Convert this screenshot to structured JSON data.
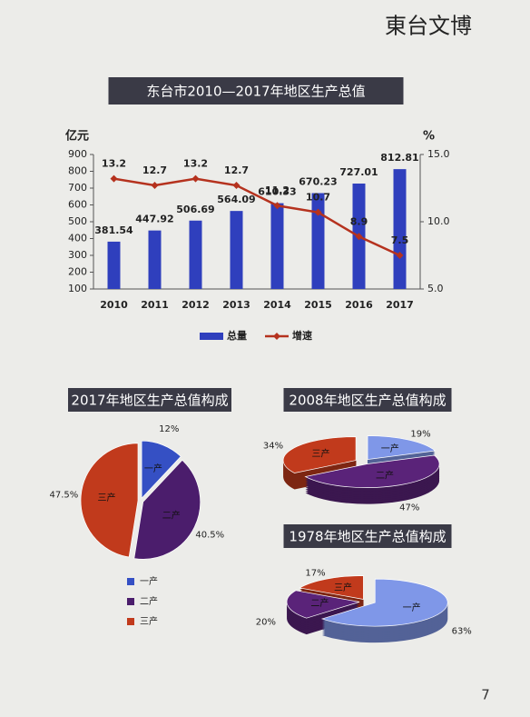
{
  "page": {
    "brand": "東台文博",
    "page_number": "7"
  },
  "chart_data": [
    {
      "type": "bar",
      "title": "东台市2010—2017年地区生产总值",
      "y_label": "亿元",
      "y2_label": "%",
      "categories": [
        "2010",
        "2011",
        "2012",
        "2013",
        "2014",
        "2015",
        "2016",
        "2017"
      ],
      "series": [
        {
          "name": "总量",
          "type": "bar",
          "color": "#2f3fbd",
          "values": [
            381.54,
            447.92,
            506.69,
            564.09,
            610.33,
            670.23,
            727.01,
            812.81
          ]
        },
        {
          "name": "增速",
          "type": "line",
          "axis": "y2",
          "color": "#b5321e",
          "values": [
            13.2,
            12.7,
            13.2,
            12.7,
            11.2,
            10.7,
            8.9,
            7.5
          ]
        }
      ],
      "ylim": [
        100,
        900
      ],
      "yticks": [
        100,
        200,
        300,
        400,
        500,
        600,
        700,
        800,
        900
      ],
      "y2lim": [
        5,
        15
      ],
      "y2ticks": [
        {
          "value": 5,
          "label": "5.0"
        },
        {
          "value": 10,
          "label": "10.0"
        },
        {
          "value": 15,
          "label": "15.0"
        }
      ]
    },
    {
      "type": "pie",
      "title": "2017年地区生产总值构成",
      "three_d": false,
      "legend": true,
      "categories": [
        "一产",
        "二产",
        "三产"
      ],
      "values": [
        12,
        40.5,
        47.5
      ],
      "value_labels": [
        "12%",
        "40.5%",
        "47.5%"
      ],
      "colors": [
        "#3550c4",
        "#4b1d6c",
        "#c13a1c"
      ]
    },
    {
      "type": "pie",
      "title": "2008年地区生产总值构成",
      "three_d": true,
      "legend": false,
      "categories": [
        "一产",
        "二产",
        "三产"
      ],
      "values": [
        19,
        47,
        34
      ],
      "value_labels": [
        "19%",
        "47%",
        "34%"
      ],
      "colors": [
        "#7f97e8",
        "#5a2379",
        "#c13a1c"
      ]
    },
    {
      "type": "pie",
      "title": "1978年地区生产总值构成",
      "three_d": true,
      "legend": false,
      "categories": [
        "一产",
        "二产",
        "三产"
      ],
      "values": [
        63,
        20,
        17
      ],
      "value_labels": [
        "63%",
        "20%",
        "17%"
      ],
      "colors": [
        "#7f97e8",
        "#5a2379",
        "#c13a1c"
      ]
    }
  ]
}
